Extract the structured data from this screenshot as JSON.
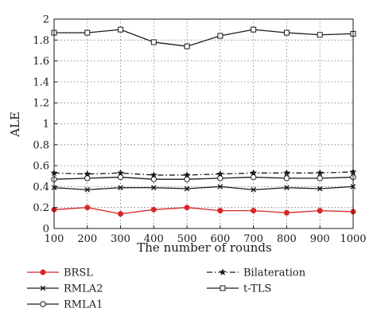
{
  "chart_data": {
    "type": "line",
    "title": "",
    "xlabel": "The number of rounds",
    "ylabel": "ALE",
    "xlim": [
      100,
      1000
    ],
    "ylim": [
      0,
      2
    ],
    "x": [
      100,
      200,
      300,
      400,
      500,
      600,
      700,
      800,
      900,
      1000
    ],
    "x_ticks": [
      "100",
      "200",
      "300",
      "400",
      "500",
      "600",
      "700",
      "800",
      "900",
      "1000"
    ],
    "y_ticks": [
      "0",
      "0.2",
      "0.4",
      "0.6",
      "0.8",
      "1",
      "1.2",
      "1.4",
      "1.6",
      "1.8",
      "2"
    ],
    "grid": "dotted",
    "legend_placement": "below",
    "series": [
      {
        "name": "BRSL",
        "marker": "dot",
        "line": "solid",
        "color": "#d62728",
        "values": [
          0.18,
          0.2,
          0.14,
          0.18,
          0.2,
          0.17,
          0.17,
          0.15,
          0.17,
          0.16
        ]
      },
      {
        "name": "RMLA2",
        "marker": "x",
        "line": "solid",
        "color": "#1a1a1a",
        "values": [
          0.39,
          0.37,
          0.39,
          0.39,
          0.38,
          0.4,
          0.37,
          0.39,
          0.38,
          0.4
        ]
      },
      {
        "name": "RMLA1",
        "marker": "circle",
        "line": "solid",
        "color": "#1a1a1a",
        "values": [
          0.47,
          0.48,
          0.49,
          0.47,
          0.47,
          0.48,
          0.49,
          0.48,
          0.48,
          0.49
        ]
      },
      {
        "name": "Bilateration",
        "marker": "star",
        "line": "dashdot",
        "color": "#1a1a1a",
        "values": [
          0.53,
          0.52,
          0.53,
          0.51,
          0.51,
          0.52,
          0.53,
          0.53,
          0.53,
          0.54
        ]
      },
      {
        "name": "t-TLS",
        "marker": "square",
        "line": "solid",
        "color": "#1a1a1a",
        "values": [
          1.87,
          1.87,
          1.9,
          1.78,
          1.74,
          1.84,
          1.9,
          1.87,
          1.85,
          1.86
        ]
      }
    ]
  }
}
